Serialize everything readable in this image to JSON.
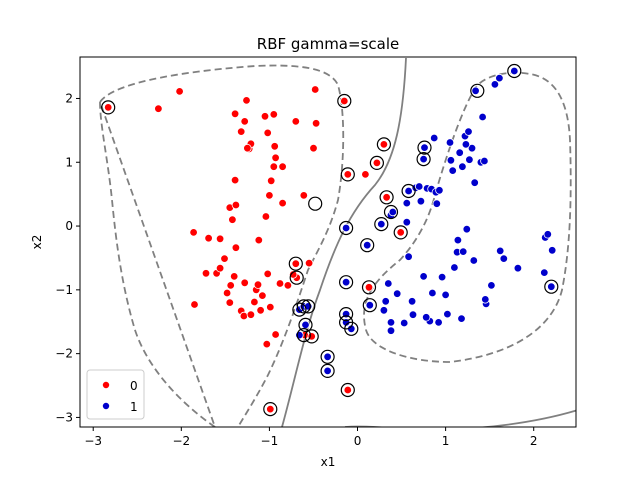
{
  "chart_data": {
    "type": "scatter",
    "title": "RBF gamma=scale",
    "xlabel": "x1",
    "ylabel": "x2",
    "xlim": [
      -3.15,
      2.48
    ],
    "ylim": [
      -3.15,
      2.65
    ],
    "xticks": [
      -3,
      -2,
      -1,
      0,
      1,
      2
    ],
    "yticks": [
      -3,
      -2,
      -1,
      0,
      1,
      2
    ],
    "x_tick_labels": [
      "−3",
      "−2",
      "−1",
      "0",
      "1",
      "2"
    ],
    "y_tick_labels": [
      "−3",
      "−2",
      "−1",
      "0",
      "1",
      "2"
    ],
    "grid": false,
    "legend_position": "lower-left",
    "series": [
      {
        "name": "0",
        "color": "#ff0000",
        "points": [
          [
            -2.83,
            1.86
          ],
          [
            -2.26,
            1.84
          ],
          [
            -2.02,
            2.11
          ],
          [
            -1.86,
            -0.1
          ],
          [
            -1.69,
            -0.19
          ],
          [
            -1.85,
            -1.23
          ],
          [
            -1.72,
            -0.74
          ],
          [
            -1.6,
            -0.74
          ],
          [
            -1.56,
            -0.66
          ],
          [
            -1.56,
            -0.2
          ],
          [
            -1.45,
            0.29
          ],
          [
            -1.42,
            0.1
          ],
          [
            -1.38,
            -0.34
          ],
          [
            -1.51,
            -0.51
          ],
          [
            -1.4,
            -0.79
          ],
          [
            -1.44,
            -0.93
          ],
          [
            -1.48,
            -1.05
          ],
          [
            -1.45,
            -1.2
          ],
          [
            -1.32,
            -1.33
          ],
          [
            -1.29,
            -1.41
          ],
          [
            -1.28,
            -0.89
          ],
          [
            -1.21,
            -1.39
          ],
          [
            -1.15,
            -1.0
          ],
          [
            -1.13,
            -0.92
          ],
          [
            -1.08,
            -1.09
          ],
          [
            -1.17,
            -1.19
          ],
          [
            -1.1,
            -1.32
          ],
          [
            -0.99,
            -1.27
          ],
          [
            -1.03,
            -1.85
          ],
          [
            -0.93,
            -1.7
          ],
          [
            -1.02,
            -0.75
          ],
          [
            -1.12,
            -0.22
          ],
          [
            -1.04,
            0.15
          ],
          [
            -1.0,
            0.48
          ],
          [
            -0.98,
            0.71
          ],
          [
            -0.95,
            0.93
          ],
          [
            -0.93,
            1.07
          ],
          [
            -0.94,
            1.25
          ],
          [
            -1.23,
            1.21
          ],
          [
            -1.21,
            1.29
          ],
          [
            -1.25,
            1.22
          ],
          [
            -1.39,
            0.72
          ],
          [
            -1.38,
            0.33
          ],
          [
            -1.39,
            1.76
          ],
          [
            -1.32,
            1.48
          ],
          [
            -1.28,
            1.64
          ],
          [
            -1.26,
            1.97
          ],
          [
            -1.05,
            1.72
          ],
          [
            -1.02,
            1.46
          ],
          [
            -0.95,
            1.75
          ],
          [
            -0.85,
            0.93
          ],
          [
            -0.85,
            0.36
          ],
          [
            -0.7,
            1.64
          ],
          [
            -0.5,
            1.22
          ],
          [
            -0.47,
            1.61
          ],
          [
            -0.48,
            2.14
          ],
          [
            -0.7,
            -0.59
          ],
          [
            -0.69,
            -0.81
          ],
          [
            -0.6,
            -1.71
          ],
          [
            -0.52,
            -1.73
          ],
          [
            -0.79,
            -0.93
          ],
          [
            -0.88,
            -0.9
          ],
          [
            -0.73,
            -0.76
          ],
          [
            -0.61,
            0.48
          ],
          [
            -0.55,
            -0.58
          ],
          [
            -0.15,
            1.96
          ],
          [
            -0.11,
            0.81
          ],
          [
            -0.99,
            -2.87
          ],
          [
            -0.11,
            -2.57
          ],
          [
            0.13,
            -0.96
          ],
          [
            0.22,
            0.99
          ],
          [
            0.3,
            1.28
          ],
          [
            0.33,
            0.45
          ],
          [
            0.49,
            -0.1
          ],
          [
            0.09,
            0.81
          ]
        ],
        "support_vectors": [
          [
            -2.83,
            1.86
          ],
          [
            -0.15,
            1.96
          ],
          [
            -0.11,
            0.81
          ],
          [
            -0.48,
            0.35
          ],
          [
            -0.7,
            -0.59
          ],
          [
            -0.69,
            -0.81
          ],
          [
            -0.66,
            -1.31
          ],
          [
            -0.61,
            -1.26
          ],
          [
            -0.56,
            -1.26
          ],
          [
            -0.52,
            -1.73
          ],
          [
            -0.61,
            -1.71
          ],
          [
            -0.99,
            -2.87
          ],
          [
            -0.11,
            -2.57
          ],
          [
            0.13,
            -0.96
          ],
          [
            0.22,
            0.99
          ],
          [
            0.3,
            1.28
          ],
          [
            0.33,
            0.45
          ],
          [
            0.49,
            -0.1
          ],
          [
            1.36,
            2.12
          ]
        ]
      },
      {
        "name": "1",
        "color": "#0000cc",
        "points": [
          [
            -0.66,
            -1.31
          ],
          [
            -0.61,
            -1.26
          ],
          [
            -0.56,
            -1.26
          ],
          [
            -0.59,
            -1.55
          ],
          [
            -0.66,
            -1.71
          ],
          [
            -0.34,
            -2.05
          ],
          [
            -0.34,
            -2.27
          ],
          [
            -0.13,
            -1.38
          ],
          [
            -0.13,
            -1.51
          ],
          [
            -0.07,
            -1.61
          ],
          [
            -0.13,
            -0.88
          ],
          [
            -0.13,
            -0.03
          ],
          [
            0.11,
            -0.3
          ],
          [
            0.14,
            -1.24
          ],
          [
            0.27,
            0.03
          ],
          [
            0.32,
            -1.18
          ],
          [
            0.35,
            -0.9
          ],
          [
            0.38,
            -1.51
          ],
          [
            0.38,
            -1.64
          ],
          [
            0.38,
            0.17
          ],
          [
            0.4,
            0.22
          ],
          [
            0.45,
            -1.06
          ],
          [
            0.53,
            -1.52
          ],
          [
            0.56,
            0.06
          ],
          [
            0.56,
            0.36
          ],
          [
            0.58,
            -0.48
          ],
          [
            0.58,
            0.55
          ],
          [
            0.62,
            -1.18
          ],
          [
            0.63,
            -1.39
          ],
          [
            0.66,
            0.6
          ],
          [
            0.7,
            0.62
          ],
          [
            0.72,
            0.39
          ],
          [
            0.75,
            1.05
          ],
          [
            0.76,
            1.23
          ],
          [
            0.75,
            -0.79
          ],
          [
            0.79,
            0.59
          ],
          [
            0.84,
            0.58
          ],
          [
            0.85,
            -1.05
          ],
          [
            0.87,
            1.38
          ],
          [
            0.89,
            0.53
          ],
          [
            0.9,
            0.35
          ],
          [
            0.93,
            0.56
          ],
          [
            0.96,
            -0.8
          ],
          [
            1.0,
            -1.08
          ],
          [
            1.02,
            -1.38
          ],
          [
            1.05,
            1.31
          ],
          [
            1.06,
            1.03
          ],
          [
            1.08,
            0.87
          ],
          [
            1.1,
            -0.65
          ],
          [
            1.13,
            -0.41
          ],
          [
            1.14,
            -0.22
          ],
          [
            1.16,
            1.15
          ],
          [
            1.18,
            -1.45
          ],
          [
            1.19,
            0.93
          ],
          [
            1.2,
            -0.4
          ],
          [
            1.22,
            1.41
          ],
          [
            1.24,
            -0.05
          ],
          [
            1.26,
            1.48
          ],
          [
            1.27,
            1.04
          ],
          [
            1.3,
            1.22
          ],
          [
            1.32,
            -0.54
          ],
          [
            1.33,
            0.68
          ],
          [
            1.34,
            2.12
          ],
          [
            1.4,
            1.0
          ],
          [
            1.42,
            1.71
          ],
          [
            1.44,
            1.02
          ],
          [
            1.46,
            -1.22
          ],
          [
            1.52,
            -0.93
          ],
          [
            1.56,
            2.22
          ],
          [
            1.61,
            2.32
          ],
          [
            1.62,
            -0.39
          ],
          [
            1.66,
            -0.51
          ],
          [
            1.78,
            2.43
          ],
          [
            1.82,
            -0.66
          ],
          [
            2.12,
            -0.73
          ],
          [
            2.13,
            -0.18
          ],
          [
            2.16,
            -0.13
          ],
          [
            2.21,
            -0.38
          ],
          [
            2.2,
            -0.95
          ],
          [
            1.23,
            1.28
          ],
          [
            0.92,
            -1.51
          ],
          [
            0.82,
            -1.49
          ],
          [
            0.78,
            -1.43
          ],
          [
            1.45,
            -1.15
          ],
          [
            0.3,
            -1.32
          ]
        ],
        "support_vectors": [
          [
            -0.59,
            -1.55
          ],
          [
            -0.34,
            -2.05
          ],
          [
            -0.34,
            -2.27
          ],
          [
            -0.13,
            -1.38
          ],
          [
            -0.13,
            -1.51
          ],
          [
            -0.07,
            -1.61
          ],
          [
            -0.13,
            -0.88
          ],
          [
            -0.13,
            -0.03
          ],
          [
            0.11,
            -0.3
          ],
          [
            0.14,
            -1.24
          ],
          [
            0.27,
            0.03
          ],
          [
            0.38,
            0.22
          ],
          [
            0.58,
            0.55
          ],
          [
            0.75,
            1.05
          ],
          [
            0.76,
            1.23
          ],
          [
            1.78,
            2.43
          ],
          [
            2.2,
            -0.95
          ]
        ]
      }
    ]
  }
}
